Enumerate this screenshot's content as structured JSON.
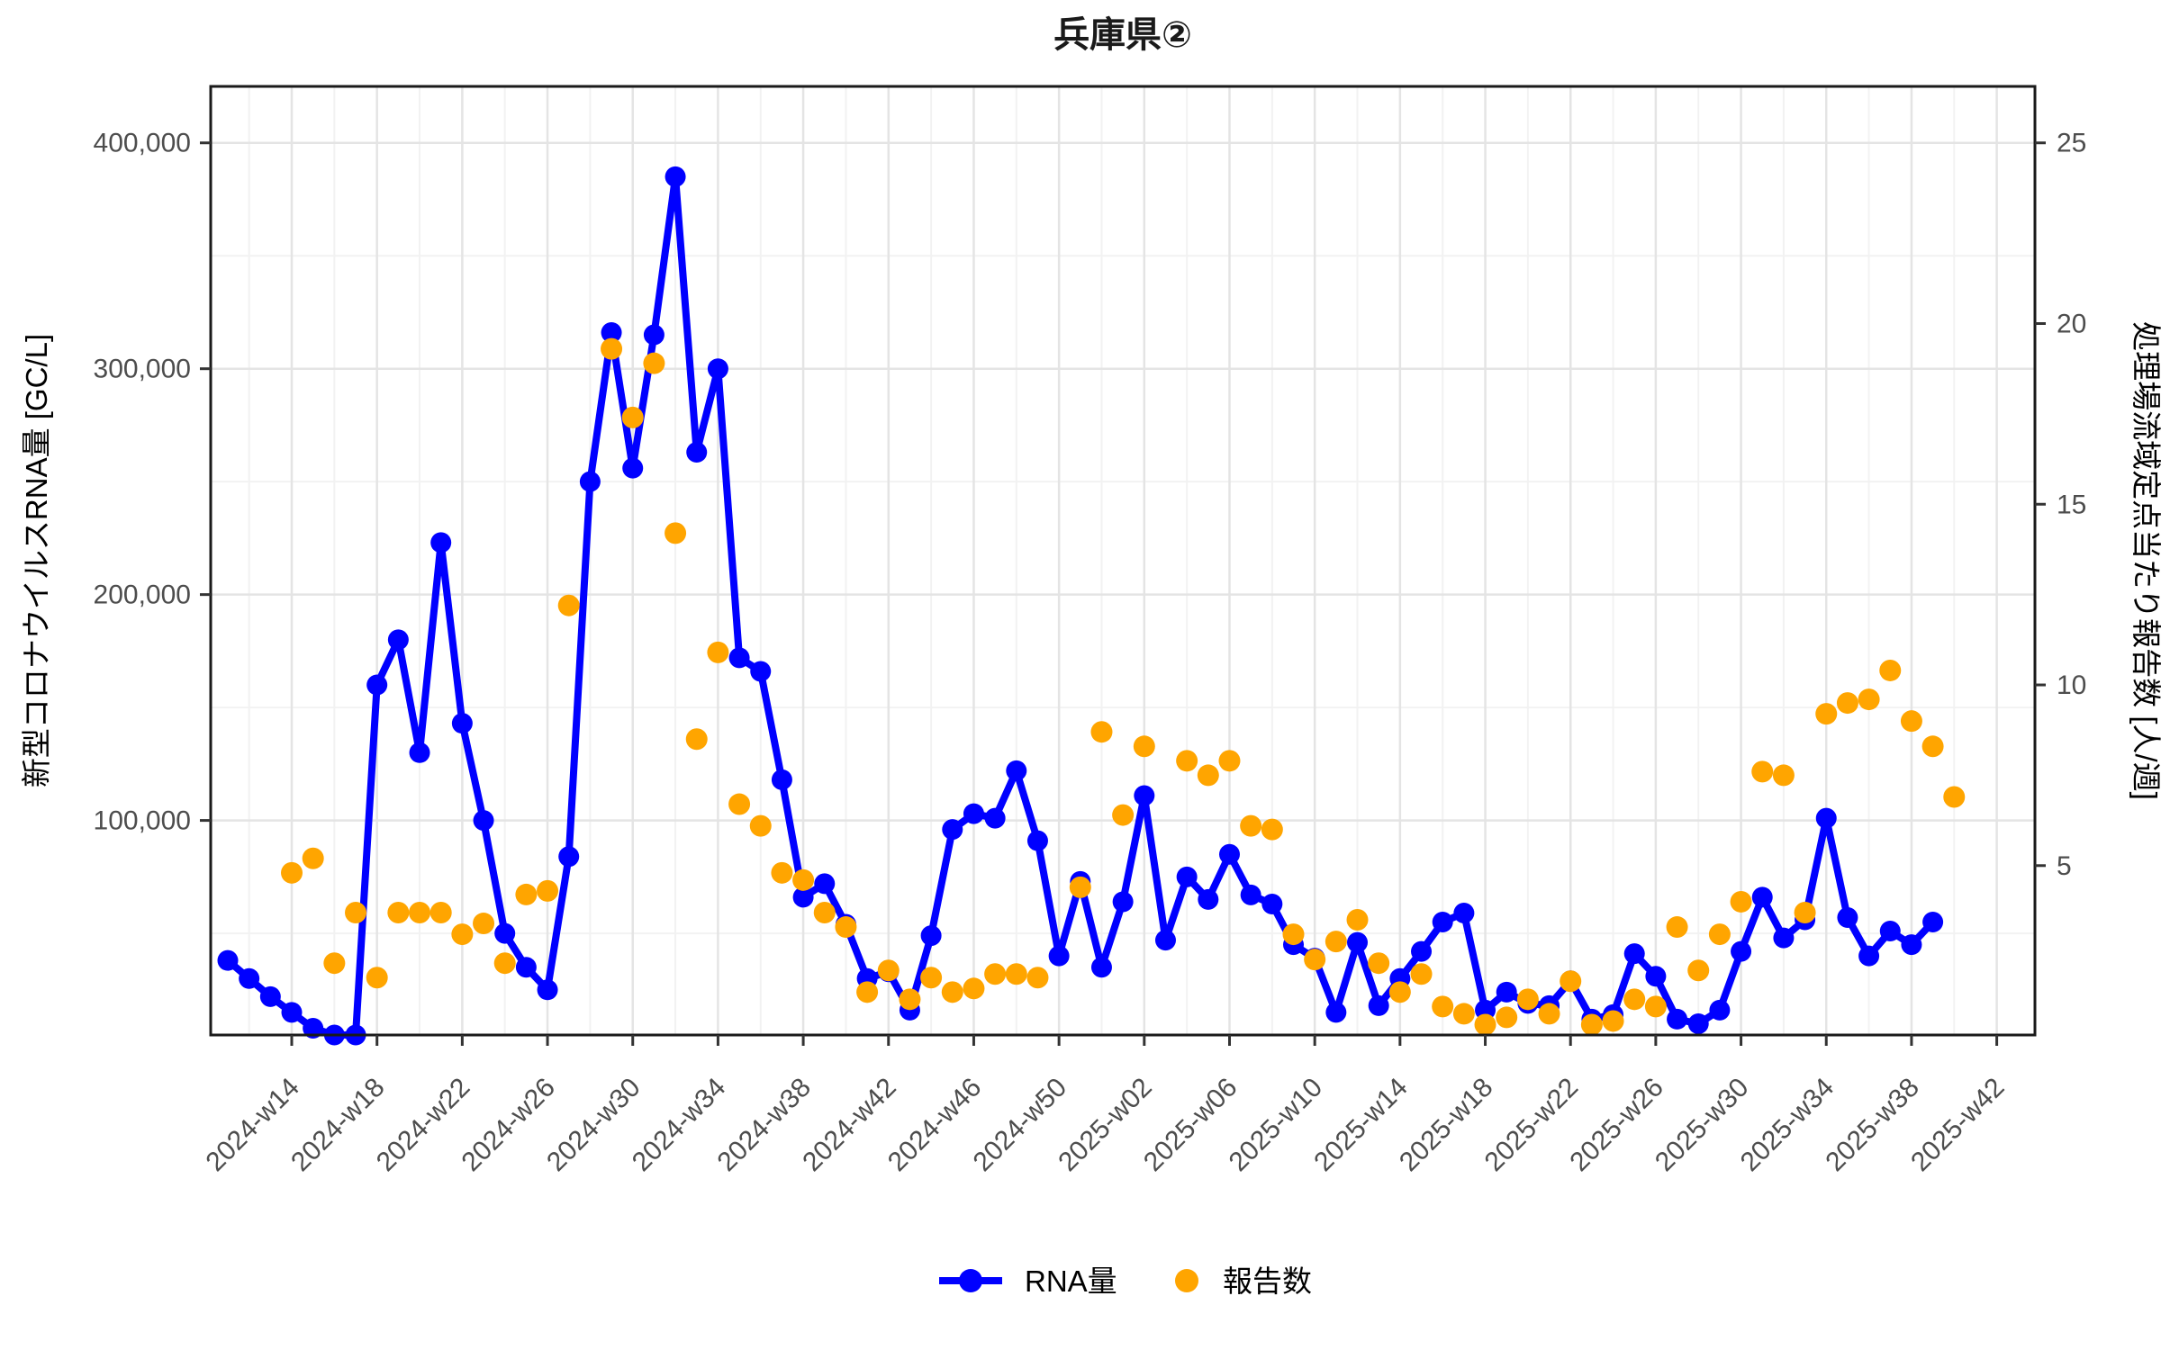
{
  "title": "兵庫県②",
  "axes": {
    "y_left_label": "新型コロナウイルスRNA量 [GC/L]",
    "y_right_label": "処理場流域定点当たり報告数 [人/週]"
  },
  "legend": {
    "rna_label": "RNA量",
    "report_label": "報告数"
  },
  "colors": {
    "rna": "#0000ff",
    "report": "#ffa500",
    "grid_major": "#e4e4e4",
    "grid_minor": "#f2f2f2",
    "axis_text": "#4d4d4d",
    "panel_border": "#1a1a1a"
  },
  "chart_data": {
    "type": "line",
    "title": "兵庫県②",
    "xlabel": "",
    "ylabel_left": "新型コロナウイルスRNA量 [GC/L]",
    "ylabel_right": "処理場流域定点当たり報告数 [人/週]",
    "x": [
      "2024-w11",
      "2024-w12",
      "2024-w13",
      "2024-w14",
      "2024-w15",
      "2024-w16",
      "2024-w17",
      "2024-w18",
      "2024-w19",
      "2024-w20",
      "2024-w21",
      "2024-w22",
      "2024-w23",
      "2024-w24",
      "2024-w25",
      "2024-w26",
      "2024-w27",
      "2024-w28",
      "2024-w29",
      "2024-w30",
      "2024-w31",
      "2024-w32",
      "2024-w33",
      "2024-w34",
      "2024-w35",
      "2024-w36",
      "2024-w37",
      "2024-w38",
      "2024-w39",
      "2024-w40",
      "2024-w41",
      "2024-w42",
      "2024-w43",
      "2024-w44",
      "2024-w45",
      "2024-w46",
      "2024-w47",
      "2024-w48",
      "2024-w49",
      "2024-w50",
      "2024-w51",
      "2024-w52",
      "2025-w01",
      "2025-w02",
      "2025-w03",
      "2025-w04",
      "2025-w05",
      "2025-w06",
      "2025-w07",
      "2025-w08",
      "2025-w09",
      "2025-w10",
      "2025-w11",
      "2025-w12",
      "2025-w13",
      "2025-w14",
      "2025-w15",
      "2025-w16",
      "2025-w17",
      "2025-w18",
      "2025-w19",
      "2025-w20",
      "2025-w21",
      "2025-w22",
      "2025-w23",
      "2025-w24",
      "2025-w25",
      "2025-w26",
      "2025-w27",
      "2025-w28",
      "2025-w29",
      "2025-w30",
      "2025-w31",
      "2025-w32",
      "2025-w33",
      "2025-w34",
      "2025-w35",
      "2025-w36",
      "2025-w37",
      "2025-w38",
      "2025-w39",
      "2025-w40",
      "2025-w41",
      "2025-w42"
    ],
    "x_tick_first_index": 3,
    "x_tick_every": 4,
    "y_left_domain": [
      5000,
      425000
    ],
    "y_left_ticks": [
      100000,
      200000,
      300000,
      400000
    ],
    "y_left_minor": [
      50000,
      150000,
      250000,
      350000
    ],
    "right_per_left": 16000,
    "y_right_ticks": [
      5,
      10,
      15,
      20,
      25
    ],
    "legend_position": "bottom",
    "grid": true,
    "series": [
      {
        "name": "RNA量",
        "axis": "left",
        "style": "line-with-points",
        "values": [
          38000,
          30000,
          22000,
          15000,
          8000,
          3000,
          1000,
          160000,
          180000,
          130000,
          223000,
          143000,
          100000,
          50000,
          35000,
          25000,
          84000,
          250000,
          316000,
          256000,
          315000,
          385000,
          263000,
          300000,
          172000,
          166000,
          118000,
          66000,
          72000,
          54000,
          30000,
          33000,
          16000,
          49000,
          96000,
          103000,
          101000,
          122000,
          91000,
          40000,
          73000,
          35000,
          64000,
          111000,
          47000,
          75000,
          65000,
          85000,
          67000,
          63000,
          45000,
          39000,
          15000,
          46000,
          18000,
          30000,
          42000,
          55000,
          59000,
          16000,
          24000,
          19000,
          18000,
          29000,
          12000,
          14000,
          41000,
          31000,
          12000,
          10000,
          16000,
          42000,
          66000,
          48000,
          56000,
          101000,
          57000,
          40000,
          51000,
          45000,
          55000,
          null,
          null,
          null
        ]
      },
      {
        "name": "報告数",
        "axis": "right",
        "style": "points",
        "values": [
          null,
          null,
          null,
          4.8,
          5.2,
          2.3,
          3.7,
          1.9,
          3.7,
          3.7,
          3.7,
          3.1,
          3.4,
          2.3,
          4.2,
          4.3,
          12.2,
          null,
          19.3,
          17.4,
          18.9,
          14.2,
          8.5,
          10.9,
          6.7,
          6.1,
          4.8,
          4.6,
          3.7,
          3.3,
          1.5,
          2.1,
          1.3,
          1.9,
          1.5,
          1.6,
          2.0,
          2.0,
          1.9,
          null,
          4.4,
          8.7,
          6.4,
          8.3,
          null,
          7.9,
          7.5,
          7.9,
          6.1,
          6.0,
          3.1,
          2.4,
          2.9,
          3.5,
          2.3,
          1.5,
          2.0,
          1.1,
          0.9,
          0.6,
          0.8,
          1.3,
          0.9,
          1.8,
          0.6,
          0.7,
          1.3,
          1.1,
          3.3,
          2.1,
          3.1,
          4.0,
          7.6,
          7.5,
          3.7,
          9.2,
          9.5,
          9.6,
          10.4,
          9.0,
          8.3,
          6.9,
          null,
          null
        ]
      }
    ]
  }
}
